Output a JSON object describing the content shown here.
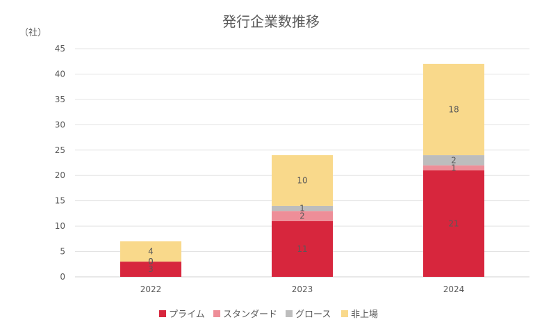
{
  "chart_data": {
    "type": "bar",
    "stacked": true,
    "title": "発行企業数推移",
    "ylabel": "（社）",
    "xlabel": "",
    "categories": [
      "2022",
      "2023",
      "2024"
    ],
    "ylim": [
      0,
      45
    ],
    "yticks": [
      0,
      5,
      10,
      15,
      20,
      25,
      30,
      35,
      40,
      45
    ],
    "grid": true,
    "legend_position": "bottom",
    "series": [
      {
        "name": "プライム",
        "color": "#D7263D",
        "values": [
          3,
          11,
          21
        ]
      },
      {
        "name": "スタンダード",
        "color": "#EE8E98",
        "values": [
          0,
          2,
          1
        ]
      },
      {
        "name": "グロース",
        "color": "#BDBDBD",
        "values": [
          0,
          1,
          2
        ]
      },
      {
        "name": "非上場",
        "color": "#F9D98B",
        "values": [
          4,
          10,
          18
        ]
      }
    ]
  }
}
